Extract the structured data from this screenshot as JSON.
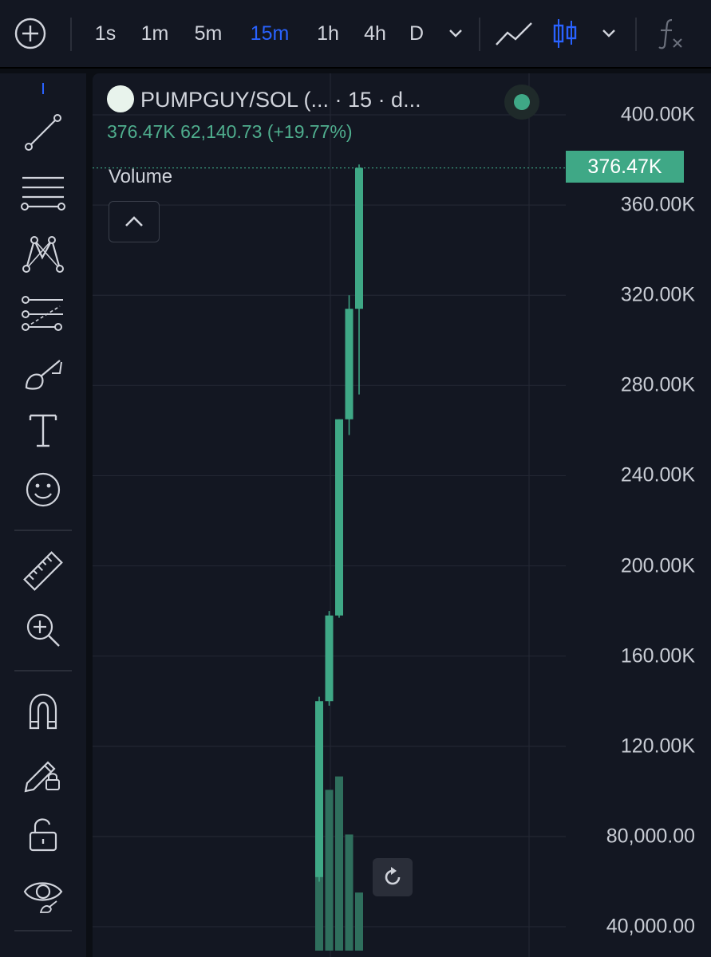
{
  "toolbar": {
    "intervals": [
      "1s",
      "1m",
      "5m",
      "15m",
      "1h",
      "4h",
      "D"
    ],
    "active_interval": "15m",
    "icons": [
      "add-icon",
      "chevron-down-icon",
      "line-chart-icon",
      "candles-icon",
      "chevron-down-icon",
      "function-icon"
    ]
  },
  "sidebar": {
    "tools": [
      "trend-line-icon",
      "horizontal-lines-icon",
      "pattern-icon",
      "fib-icon",
      "brush-icon",
      "text-icon",
      "emoji-icon",
      "ruler-icon",
      "zoom-in-icon",
      "magnet-icon",
      "lock-drawing-icon",
      "unlock-icon",
      "eye-icon"
    ]
  },
  "legend": {
    "title": "PUMPGUY/SOL (... · 15 · d...",
    "price": "376.47K",
    "change": "62,140.73",
    "change_pct": "(+19.77%)",
    "volume_label": "Volume"
  },
  "price_axis": {
    "labels": [
      "400.00K",
      "360.00K",
      "320.00K",
      "280.00K",
      "240.00K",
      "200.00K",
      "160.00K",
      "120.00K",
      "80,000.00",
      "40,000.00"
    ],
    "current": "376.47K"
  },
  "colors": {
    "up": "#3fa886",
    "volume": "#2f6f5d",
    "accent": "#2962ff",
    "background": "#131722"
  },
  "chart_data": {
    "type": "candlestick",
    "y_range": [
      25000,
      410000
    ],
    "candles": [
      {
        "open": 62000,
        "high": 142000,
        "low": 60000,
        "close": 140000
      },
      {
        "open": 140000,
        "high": 180000,
        "low": 138000,
        "close": 178000
      },
      {
        "open": 178000,
        "high": 265000,
        "low": 177000,
        "close": 265000
      },
      {
        "open": 265000,
        "high": 320000,
        "low": 258000,
        "close": 314000
      },
      {
        "open": 314000,
        "high": 378000,
        "low": 276000,
        "close": 376470
      }
    ],
    "volume_relative": [
      0.55,
      0.72,
      0.78,
      0.52,
      0.26
    ]
  }
}
